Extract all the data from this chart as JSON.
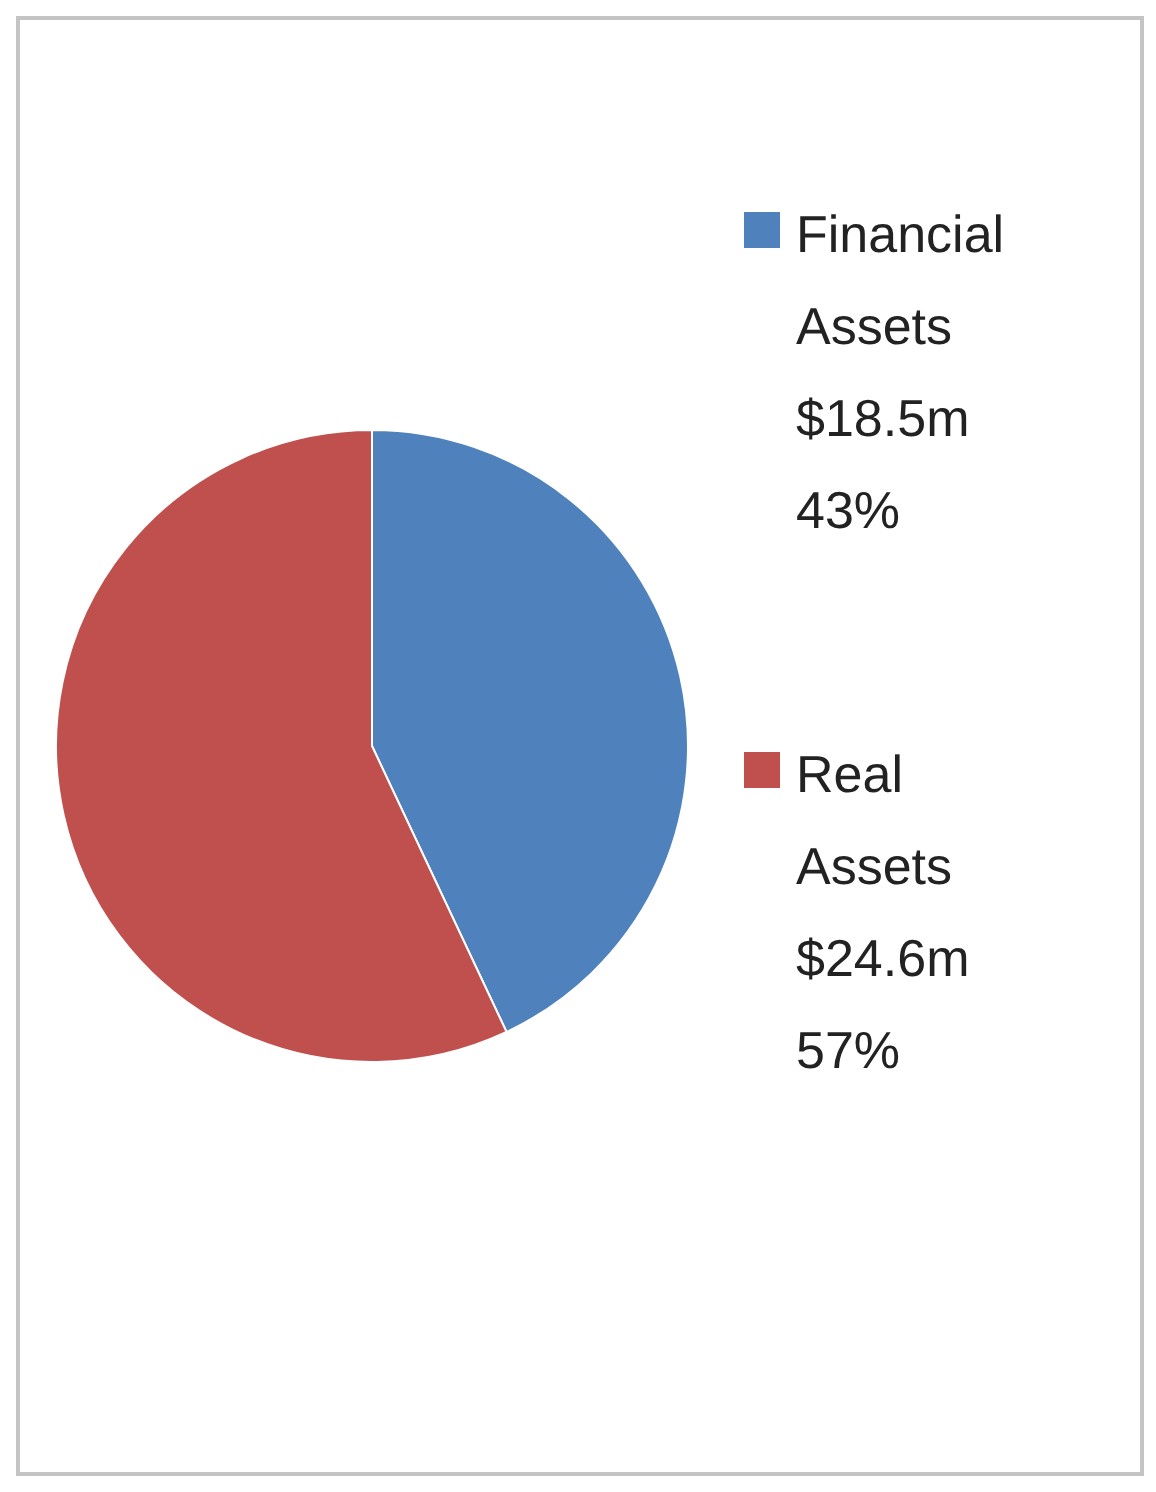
{
  "chart_data": {
    "type": "pie",
    "categories": [
      "Financial Assets $18.5m",
      "Real Assets $24.6m"
    ],
    "values": [
      43,
      57
    ],
    "value_labels": [
      "43%",
      "57%"
    ],
    "colors": [
      "#4f81bd",
      "#c0504d"
    ],
    "legend": "right"
  }
}
